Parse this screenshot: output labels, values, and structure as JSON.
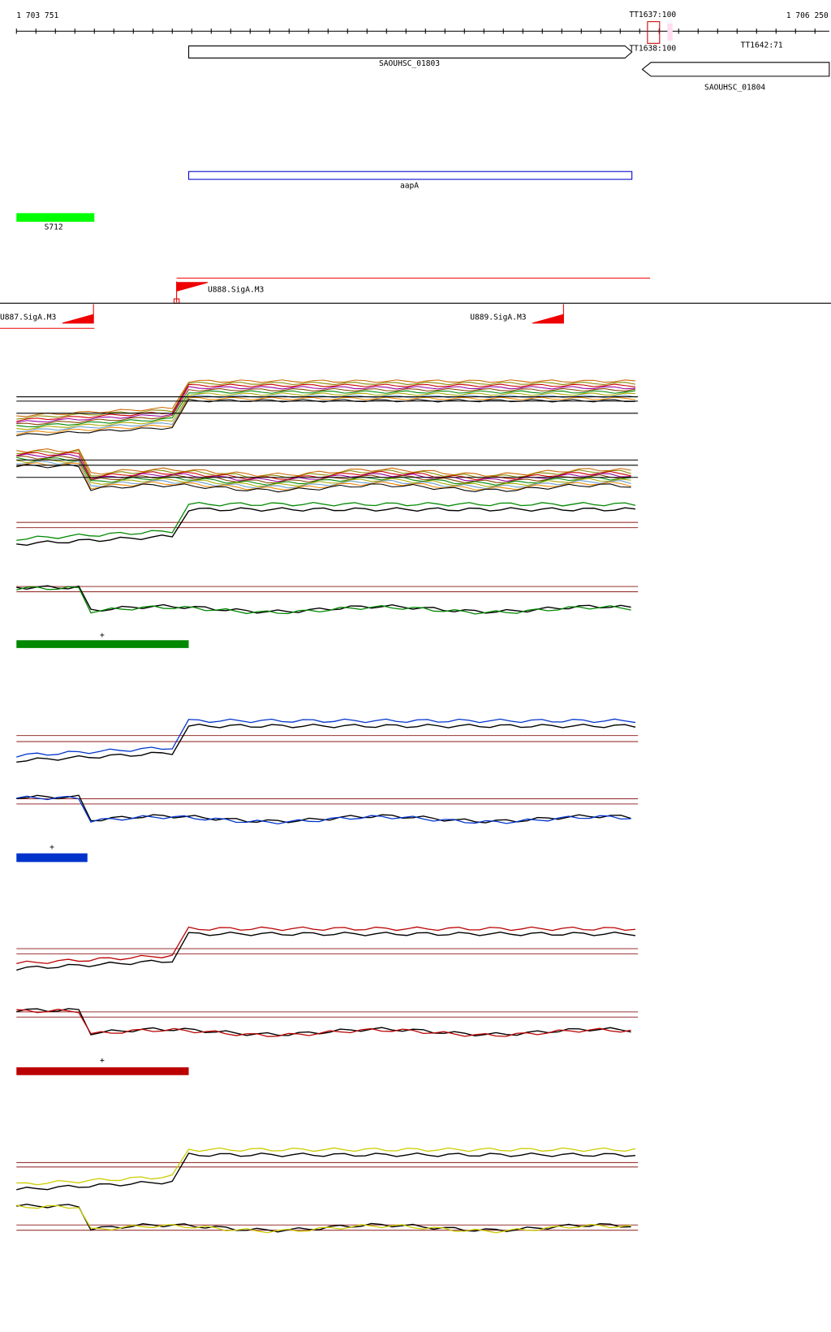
{
  "ruler": {
    "start": "1 703 751",
    "end": "1 706 250"
  },
  "terminators": [
    "TT1637:100",
    "TT1638:100",
    "TT1642:71"
  ],
  "genes": [
    "SAOUHSC_01803",
    "SAOUHSC_01804"
  ],
  "annotations": [
    "aapA",
    "S712"
  ],
  "promoters": [
    "U888.SigA.M3",
    "U887.SigA.M3",
    "U889.SigA.M3"
  ],
  "tracks": [
    {
      "label": "+"
    },
    {
      "label": "+"
    },
    {
      "label": "+"
    }
  ]
}
